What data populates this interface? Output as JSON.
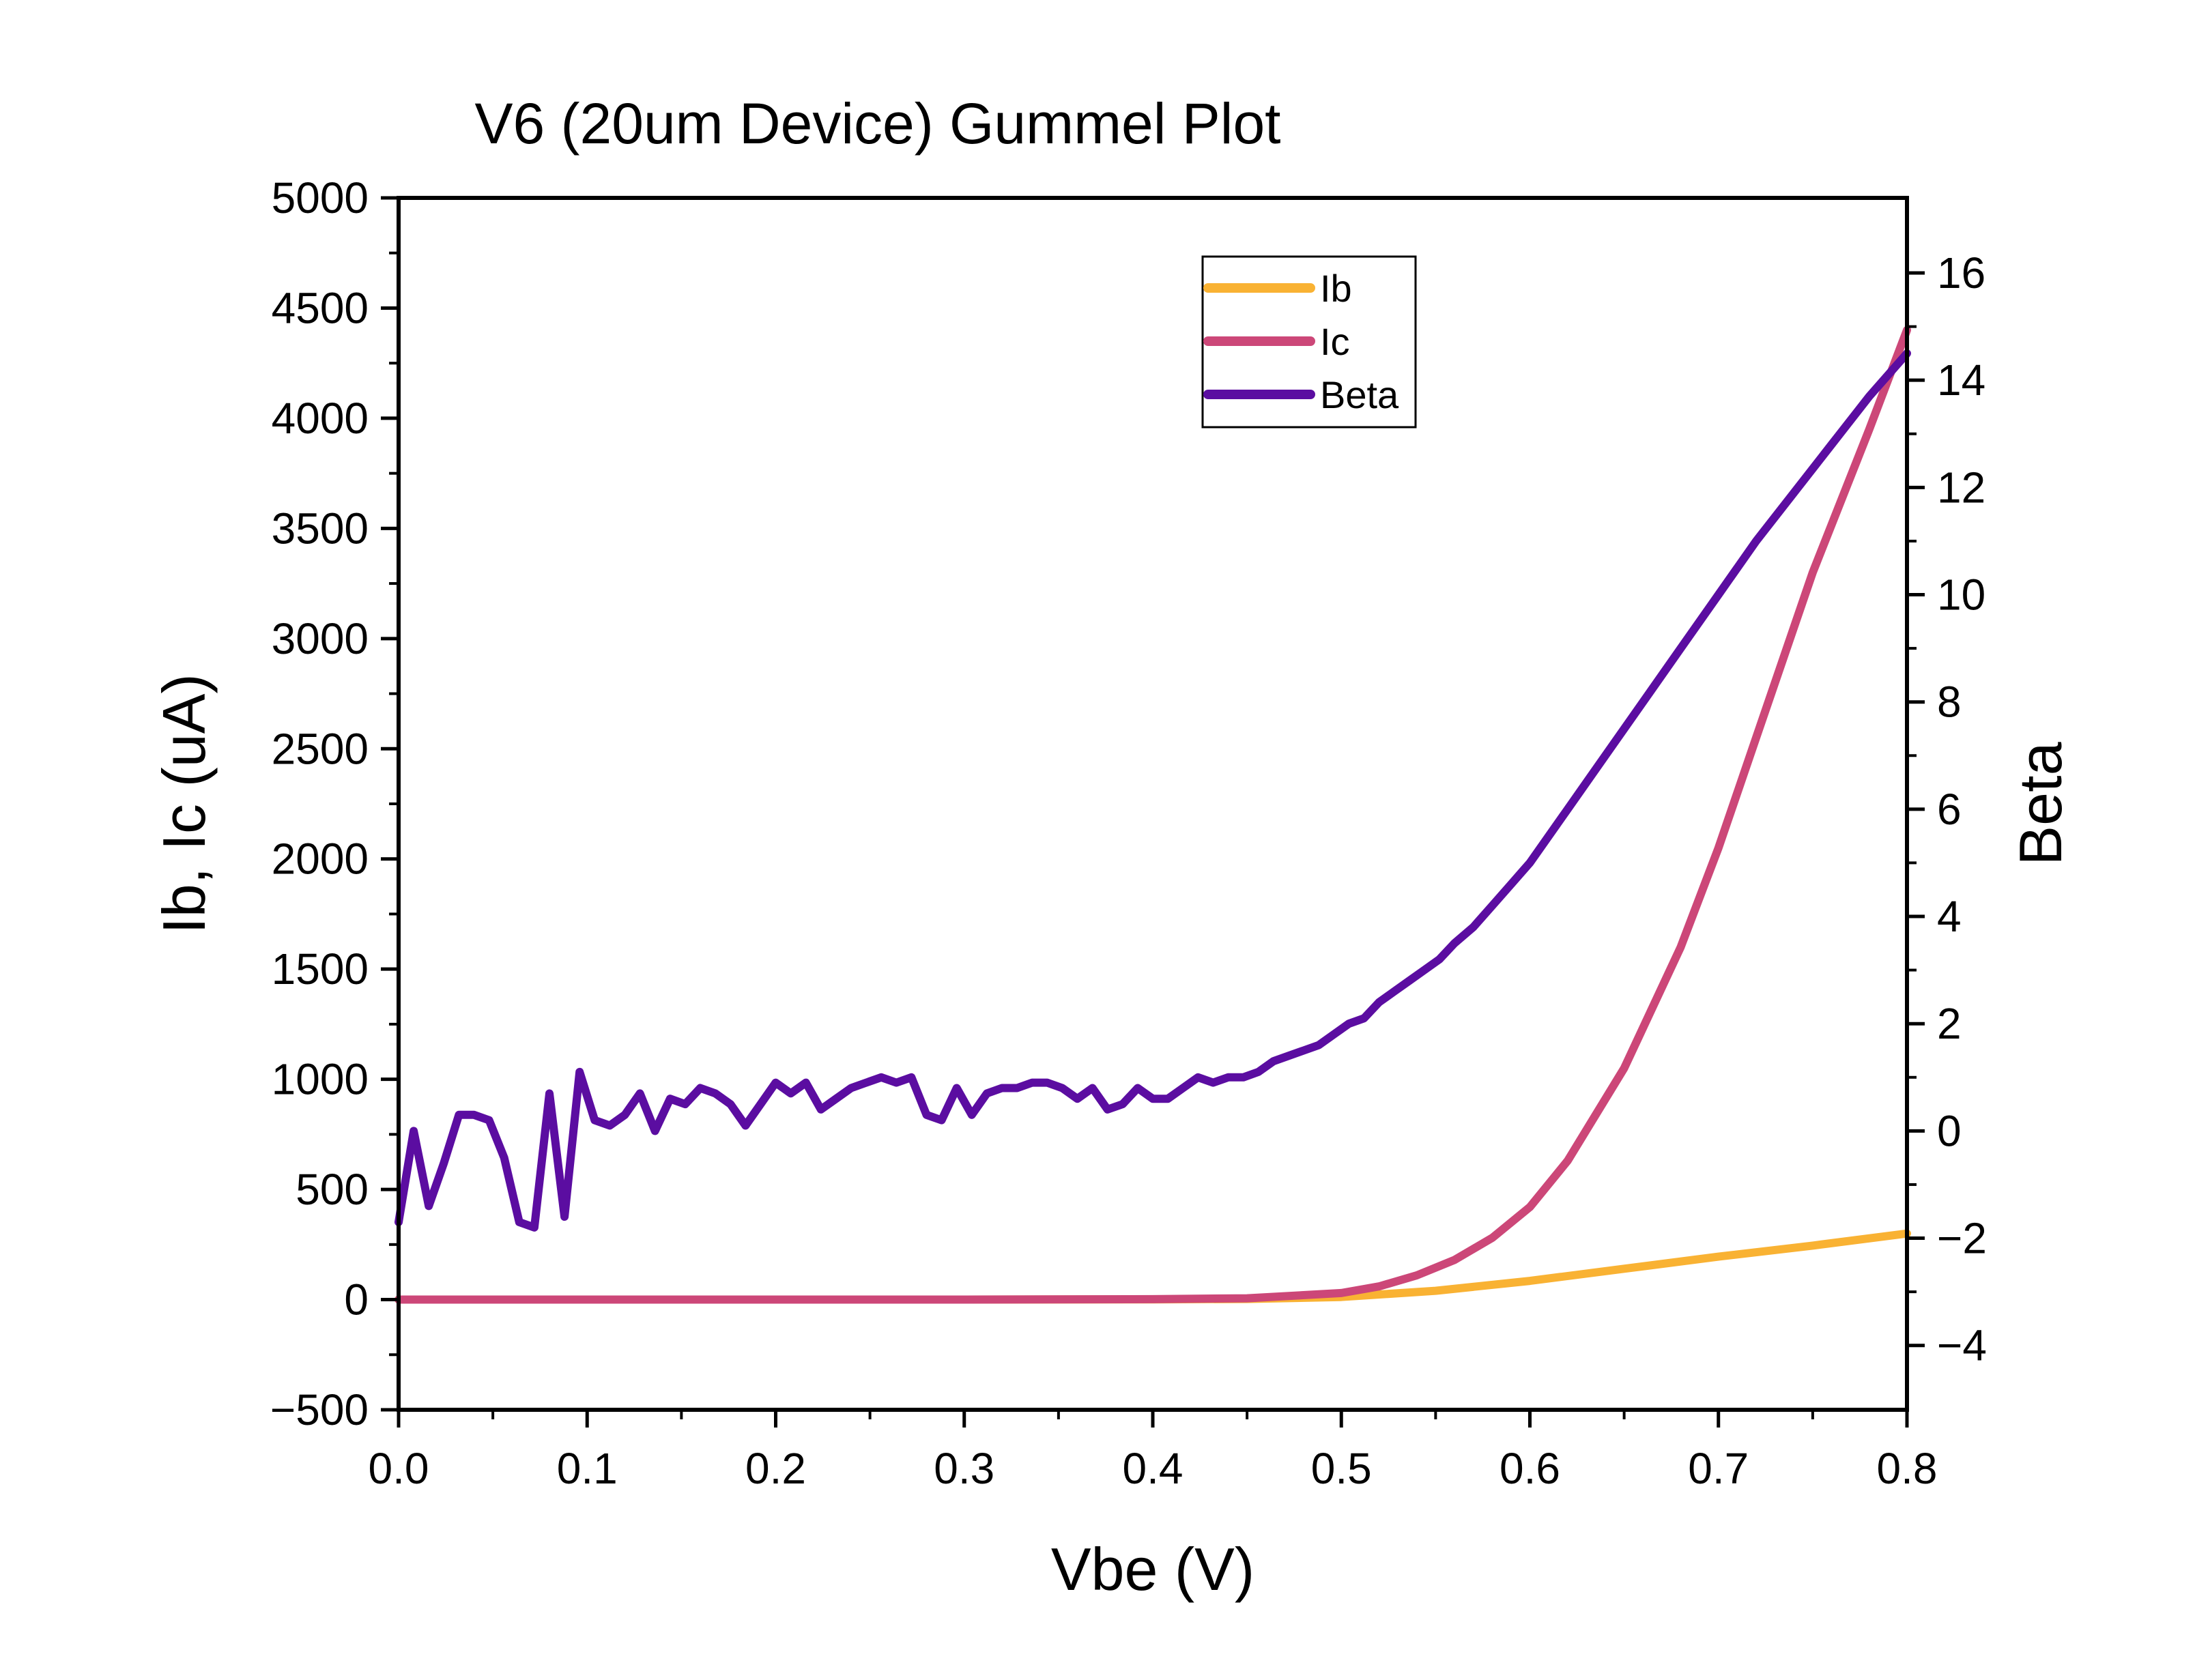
{
  "chart_data": {
    "type": "line",
    "title": "V6 (20um Device) Gummel Plot",
    "xlabel": "Vbe (V)",
    "ylabel": "Ib, Ic (uA)",
    "y2label": "Beta",
    "xlim": [
      0.0,
      0.8
    ],
    "ylim": [
      -500,
      5000
    ],
    "y2lim": [
      -5.2,
      17.4
    ],
    "x_ticks": [
      "0.0",
      "0.1",
      "0.2",
      "0.3",
      "0.4",
      "0.5",
      "0.6",
      "0.7",
      "0.8"
    ],
    "y_ticks": [
      "−500",
      "0",
      "500",
      "1000",
      "1500",
      "2000",
      "2500",
      "3000",
      "3500",
      "4000",
      "4500",
      "5000"
    ],
    "y2_ticks": [
      "−4",
      "−2",
      "0",
      "2",
      "4",
      "6",
      "8",
      "10",
      "12",
      "14",
      "16"
    ],
    "grid": false,
    "legend_position": "top-center",
    "series": [
      {
        "name": "Ib",
        "axis": "left",
        "color": "#F9B233",
        "x": [
          0.0,
          0.1,
          0.2,
          0.3,
          0.4,
          0.45,
          0.5,
          0.55,
          0.6,
          0.65,
          0.7,
          0.75,
          0.8
        ],
        "y": [
          0,
          0,
          0,
          0,
          1,
          3,
          12,
          40,
          85,
          140,
          195,
          245,
          300
        ]
      },
      {
        "name": "Ic",
        "axis": "left",
        "color": "#CC4778",
        "x": [
          0.0,
          0.1,
          0.2,
          0.3,
          0.4,
          0.45,
          0.5,
          0.52,
          0.54,
          0.56,
          0.58,
          0.6,
          0.62,
          0.65,
          0.68,
          0.7,
          0.72,
          0.75,
          0.78,
          0.8
        ],
        "y": [
          0,
          0,
          0,
          0,
          2,
          6,
          30,
          60,
          110,
          180,
          280,
          420,
          630,
          1050,
          1600,
          2050,
          2550,
          3300,
          3950,
          4400
        ]
      },
      {
        "name": "Beta",
        "axis": "right",
        "color": "#5B0DA1",
        "x": [
          0.0,
          0.008,
          0.016,
          0.024,
          0.032,
          0.04,
          0.048,
          0.056,
          0.064,
          0.072,
          0.08,
          0.088,
          0.096,
          0.104,
          0.112,
          0.12,
          0.128,
          0.136,
          0.144,
          0.152,
          0.16,
          0.168,
          0.176,
          0.184,
          0.192,
          0.2,
          0.208,
          0.216,
          0.224,
          0.232,
          0.24,
          0.248,
          0.256,
          0.264,
          0.272,
          0.28,
          0.288,
          0.296,
          0.304,
          0.312,
          0.32,
          0.328,
          0.336,
          0.344,
          0.352,
          0.36,
          0.368,
          0.376,
          0.384,
          0.392,
          0.4,
          0.408,
          0.416,
          0.424,
          0.432,
          0.44,
          0.448,
          0.456,
          0.464,
          0.472,
          0.48,
          0.488,
          0.496,
          0.504,
          0.512,
          0.52,
          0.528,
          0.536,
          0.544,
          0.552,
          0.56,
          0.57,
          0.58,
          0.59,
          0.6,
          0.62,
          0.64,
          0.66,
          0.68,
          0.7,
          0.72,
          0.74,
          0.76,
          0.78,
          0.8
        ],
        "y": [
          -1.7,
          0.0,
          -1.4,
          -0.6,
          0.3,
          0.3,
          0.2,
          -0.5,
          -1.7,
          -1.8,
          0.7,
          -1.6,
          1.1,
          0.2,
          0.1,
          0.3,
          0.7,
          0.0,
          0.6,
          0.5,
          0.8,
          0.7,
          0.5,
          0.1,
          0.5,
          0.9,
          0.7,
          0.9,
          0.4,
          0.6,
          0.8,
          0.9,
          1.0,
          0.9,
          1.0,
          0.3,
          0.2,
          0.8,
          0.3,
          0.7,
          0.8,
          0.8,
          0.9,
          0.9,
          0.8,
          0.6,
          0.8,
          0.4,
          0.5,
          0.8,
          0.6,
          0.6,
          0.8,
          1.0,
          0.9,
          1.0,
          1.0,
          1.1,
          1.3,
          1.4,
          1.5,
          1.6,
          1.8,
          2.0,
          2.1,
          2.4,
          2.6,
          2.8,
          3.0,
          3.2,
          3.5,
          3.8,
          4.2,
          4.6,
          5.0,
          6.0,
          7.0,
          8.0,
          9.0,
          10.0,
          11.0,
          11.9,
          12.8,
          13.7,
          14.5
        ]
      }
    ]
  }
}
